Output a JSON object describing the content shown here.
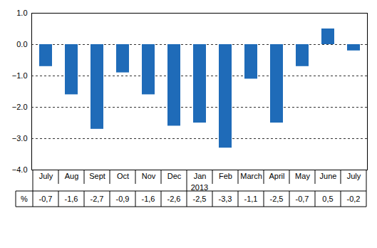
{
  "chart_data": {
    "type": "bar",
    "categories": [
      "July",
      "Aug",
      "Sept",
      "Oct",
      "Nov",
      "Dec",
      "Jan",
      "Feb",
      "March",
      "April",
      "May",
      "June",
      "July"
    ],
    "values": [
      -0.7,
      -1.6,
      -2.7,
      -0.9,
      -1.6,
      -2.6,
      -2.5,
      -3.3,
      -1.1,
      -2.5,
      -0.7,
      0.5,
      -0.2
    ],
    "value_labels": [
      "-0,7",
      "-1,6",
      "-2,7",
      "-0,9",
      "-1,6",
      "-2,6",
      "-2,5",
      "-3,3",
      "-1,1",
      "-2,5",
      "-0,7",
      "0,5",
      "-0,2"
    ],
    "table_label": "%",
    "annotations": [
      {
        "text": "2013",
        "category_range": [
          6,
          12
        ]
      }
    ],
    "color": "#1f6bb8",
    "ylim": [
      -4,
      1
    ],
    "yticks": [
      -4,
      -3,
      -2,
      -1,
      0,
      1
    ],
    "grid": true
  }
}
